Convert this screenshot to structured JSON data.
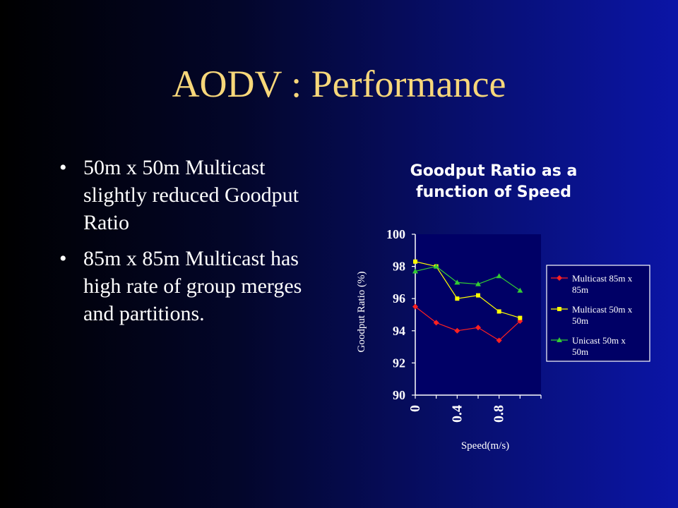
{
  "slide": {
    "title": "AODV : Performance",
    "bullets": [
      "50m x 50m Multicast slightly reduced Goodput Ratio",
      "85m x 85m Multicast has high rate of group merges and partitions."
    ]
  },
  "colors": {
    "title": "#f7d77a",
    "text": "#ffffff",
    "plot_bg": "#000066",
    "legend_bg": "#000066"
  },
  "chart_data": {
    "type": "line",
    "title": "Goodput Ratio as a function of Speed",
    "xlabel": "Speed(m/s)",
    "ylabel": "Goodput Ratio (%)",
    "x": [
      0,
      0.2,
      0.4,
      0.6,
      0.8,
      1.0
    ],
    "x_tick_labels": [
      "0",
      "0.4",
      "0.8"
    ],
    "x_tick_values": [
      0,
      0.4,
      0.8
    ],
    "ylim": [
      90,
      100
    ],
    "y_ticks": [
      90,
      92,
      94,
      96,
      98,
      100
    ],
    "grid": false,
    "legend_position": "right",
    "series": [
      {
        "name": "Multicast 85m x 85m",
        "color": "#ff2020",
        "marker": "diamond",
        "values": [
          95.5,
          94.5,
          94.0,
          94.2,
          93.4,
          94.6
        ]
      },
      {
        "name": "Multicast 50m x 50m",
        "color": "#ffff00",
        "marker": "square",
        "values": [
          98.3,
          98.0,
          96.0,
          96.2,
          95.2,
          94.8
        ]
      },
      {
        "name": "Unicast 50m x 50m",
        "color": "#33cc33",
        "marker": "triangle",
        "values": [
          97.7,
          98.0,
          97.0,
          96.9,
          97.4,
          96.5
        ]
      }
    ]
  }
}
